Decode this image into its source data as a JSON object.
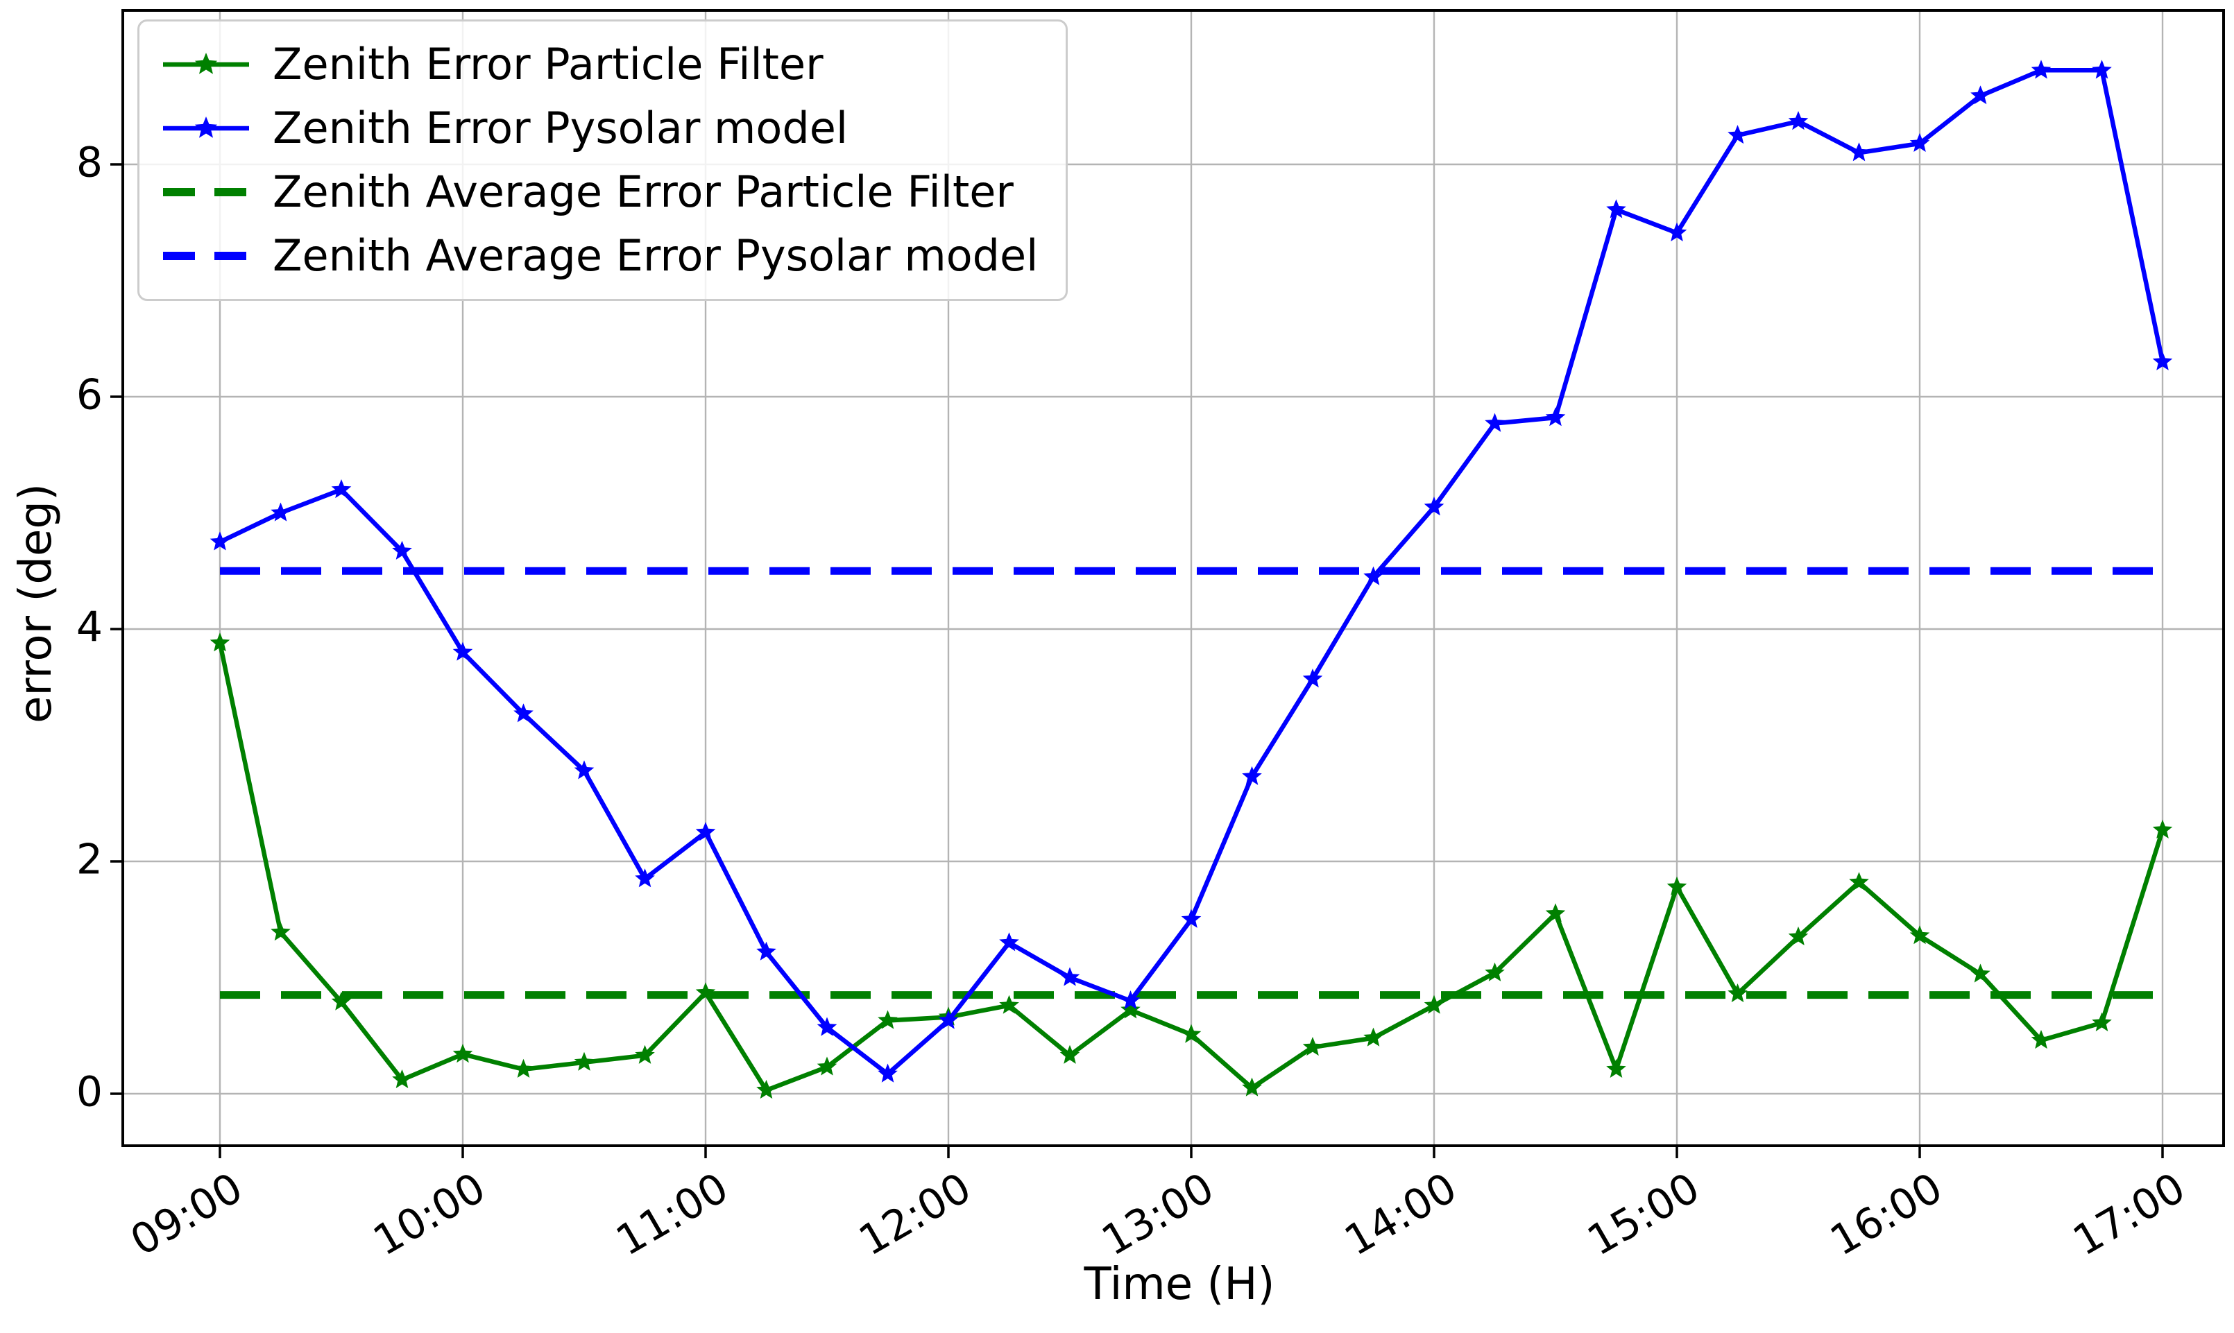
{
  "figure": {
    "background_color": "#ffffff"
  },
  "chart_data": {
    "type": "line",
    "title": "",
    "xlabel": "Time (H)",
    "ylabel": "error (deg)",
    "x_axis_tick_labels": [
      "09:00",
      "10:00",
      "11:00",
      "12:00",
      "13:00",
      "14:00",
      "15:00",
      "16:00",
      "17:00"
    ],
    "y_axis_ticks": [
      0,
      2,
      4,
      6,
      8
    ],
    "ylim": [
      -0.45,
      9.33
    ],
    "xlim_hours": [
      8.6,
      17.25
    ],
    "grid": true,
    "grid_color": "#b4b4b4",
    "legend_position": "upper left",
    "x": [
      "09:00",
      "09:15",
      "09:30",
      "09:45",
      "10:00",
      "10:15",
      "10:30",
      "10:45",
      "11:00",
      "11:15",
      "11:30",
      "11:45",
      "12:00",
      "12:15",
      "12:30",
      "12:45",
      "13:00",
      "13:15",
      "13:30",
      "13:45",
      "14:00",
      "14:15",
      "14:30",
      "14:45",
      "15:00",
      "15:15",
      "15:30",
      "15:45",
      "16:00",
      "16:15",
      "16:30",
      "16:45",
      "17:00"
    ],
    "series": [
      {
        "name": "Zenith Error Particle Filter",
        "kind": "line",
        "color": "#008000",
        "dash": "solid",
        "marker": "star",
        "values": [
          3.88,
          1.39,
          0.79,
          0.12,
          0.34,
          0.21,
          0.27,
          0.33,
          0.87,
          0.03,
          0.23,
          0.63,
          0.66,
          0.76,
          0.33,
          0.72,
          0.51,
          0.05,
          0.4,
          0.48,
          0.76,
          1.04,
          1.55,
          0.21,
          1.78,
          0.86,
          1.35,
          1.82,
          1.36,
          1.03,
          0.46,
          0.61,
          2.27
        ]
      },
      {
        "name": "Zenith Error Pysolar model",
        "kind": "line",
        "color": "#0000ff",
        "dash": "solid",
        "marker": "star",
        "values": [
          4.75,
          5.0,
          5.2,
          4.67,
          3.8,
          3.27,
          2.78,
          1.85,
          2.25,
          1.22,
          0.57,
          0.17,
          0.63,
          1.3,
          1.0,
          0.8,
          1.5,
          2.73,
          3.57,
          4.45,
          5.05,
          5.77,
          5.82,
          7.61,
          7.41,
          8.25,
          8.37,
          8.1,
          8.18,
          8.59,
          8.81,
          8.81,
          6.3
        ]
      },
      {
        "name": "Zenith Average Error Particle Filter",
        "kind": "hline",
        "color": "#008000",
        "dash": "dashed",
        "marker": "none",
        "value": 0.85
      },
      {
        "name": "Zenith Average Error Pysolar model",
        "kind": "hline",
        "color": "#0000ff",
        "dash": "dashed",
        "marker": "none",
        "value": 4.5
      }
    ]
  }
}
